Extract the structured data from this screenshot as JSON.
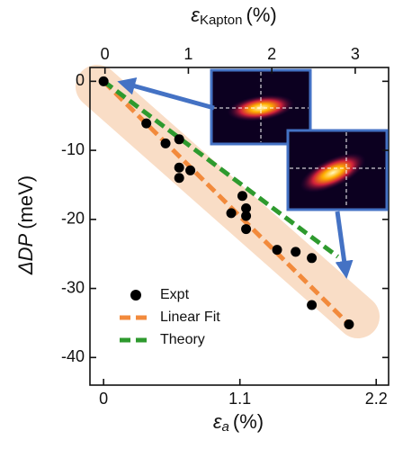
{
  "chart_data": {
    "type": "scatter",
    "x_label": {
      "symbol": "ε",
      "subscript": "a",
      "unit": "(%)"
    },
    "x2_label": {
      "symbol": "ε",
      "subscript": "Kapton",
      "unit": "(%)"
    },
    "y_label": {
      "symbol": "ΔDP",
      "unit": "(meV)"
    },
    "xlim": [
      -0.11,
      2.3
    ],
    "xticks": [
      0,
      1.1,
      2.2
    ],
    "x2lim": [
      -0.18,
      3.4
    ],
    "x2ticks": [
      0,
      1,
      2,
      3
    ],
    "ylim": [
      -44,
      2
    ],
    "yticks": [
      0,
      -10,
      -20,
      -30,
      -40
    ],
    "legend": "lower left",
    "series": [
      {
        "name": "Expt",
        "type": "scatter",
        "color": "#000000",
        "x": [
          0,
          0.345,
          0.5,
          0.61,
          0.61,
          0.61,
          0.7,
          1.03,
          1.12,
          1.15,
          1.15,
          1.15,
          1.4,
          1.55,
          1.68,
          1.68,
          1.98
        ],
        "values": [
          0,
          -6.1,
          -9.0,
          -8.4,
          -12.5,
          -14.0,
          -12.9,
          -19.1,
          -16.6,
          -18.4,
          -19.5,
          -21.4,
          -24.4,
          -24.7,
          -25.6,
          -32.4,
          -35.2
        ]
      },
      {
        "name": "Linear Fit",
        "type": "line",
        "color": "#f28a3c",
        "x": [
          0,
          1.98
        ],
        "values": [
          0,
          -35.2
        ]
      },
      {
        "name": "Theory",
        "type": "line",
        "color": "#2e9a2e",
        "x": [
          0,
          1.89
        ],
        "values": [
          0,
          -25.4
        ]
      }
    ]
  }
}
